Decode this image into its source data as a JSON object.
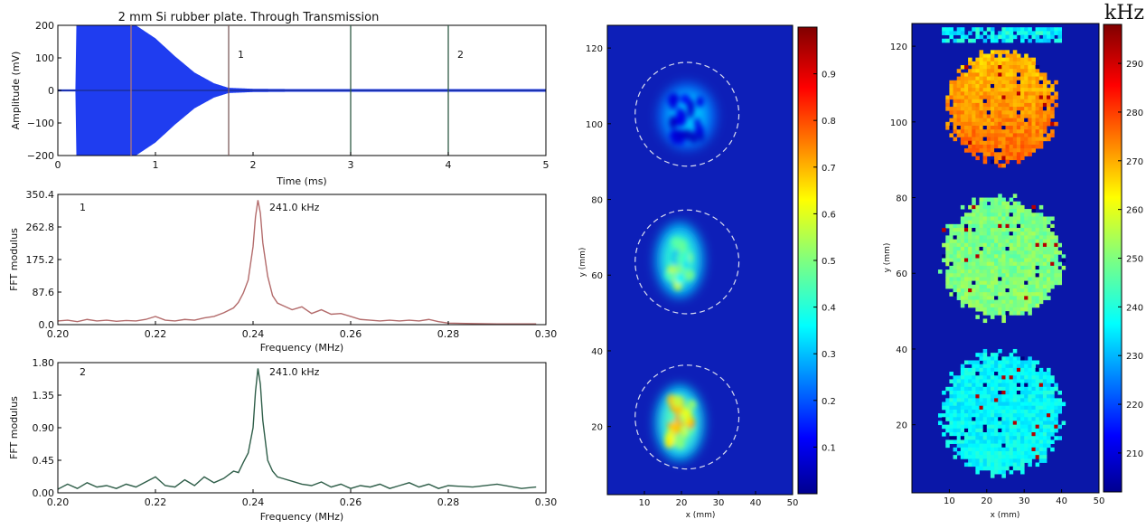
{
  "chart_data": [
    {
      "id": "time-signal",
      "type": "line",
      "title": "2 mm Si rubber plate. Through Transmission",
      "xlabel": "Time (ms)",
      "ylabel": "Amplitude (mV)",
      "xlim": [
        0,
        5
      ],
      "ylim": [
        -200,
        200
      ],
      "xticks": [
        "0",
        "1",
        "2",
        "3",
        "4",
        "5"
      ],
      "yticks": [
        "200",
        "100",
        "0",
        "−100",
        "−200"
      ],
      "envelope": {
        "x": [
          0.0,
          0.18,
          0.19,
          0.6,
          0.8,
          1.0,
          1.2,
          1.4,
          1.6,
          1.75,
          2.0,
          2.5,
          3.0,
          4.0,
          5.0
        ],
        "upper": [
          3,
          3,
          200,
          200,
          200,
          160,
          105,
          55,
          22,
          8,
          5,
          4,
          4,
          4,
          4
        ],
        "lower": [
          -3,
          -3,
          -200,
          -200,
          -200,
          -160,
          -105,
          -55,
          -22,
          -8,
          -5,
          -4,
          -4,
          -4,
          -4
        ]
      },
      "markers": [
        {
          "x": 0.75,
          "label": "",
          "color": "#b07a7a"
        },
        {
          "x": 1.75,
          "label": "1",
          "color": "#7d5c5c"
        },
        {
          "x": 3.0,
          "label": "",
          "color": "#2f5a45"
        },
        {
          "x": 4.0,
          "label": "2",
          "color": "#2f5a45"
        }
      ],
      "color": "#1f3df0"
    },
    {
      "id": "fft-1",
      "type": "line",
      "panel_label": "1",
      "annotation": "241.0 kHz",
      "xlabel": "Frequency (MHz)",
      "ylabel": "FFT modulus",
      "xlim": [
        0.2,
        0.3
      ],
      "ylim": [
        0,
        350.4
      ],
      "xticks": [
        "0.20",
        "0.22",
        "0.24",
        "0.26",
        "0.28",
        "0.30"
      ],
      "yticks": [
        "350.4",
        "262.8",
        "175.2",
        "87.6",
        "0.0"
      ],
      "color": "#b36b6b",
      "x": [
        0.2,
        0.202,
        0.204,
        0.206,
        0.208,
        0.21,
        0.212,
        0.214,
        0.216,
        0.218,
        0.22,
        0.222,
        0.224,
        0.226,
        0.228,
        0.23,
        0.232,
        0.234,
        0.236,
        0.237,
        0.238,
        0.239,
        0.24,
        0.2405,
        0.241,
        0.2415,
        0.242,
        0.243,
        0.244,
        0.245,
        0.246,
        0.248,
        0.25,
        0.252,
        0.254,
        0.256,
        0.258,
        0.26,
        0.262,
        0.264,
        0.266,
        0.268,
        0.27,
        0.272,
        0.274,
        0.276,
        0.278,
        0.28,
        0.285,
        0.29,
        0.295,
        0.298
      ],
      "y": [
        10,
        12,
        8,
        14,
        10,
        12,
        9,
        11,
        10,
        14,
        22,
        12,
        10,
        14,
        12,
        18,
        22,
        32,
        45,
        60,
        85,
        120,
        210,
        290,
        335,
        300,
        220,
        130,
        78,
        58,
        52,
        40,
        48,
        30,
        40,
        28,
        30,
        22,
        14,
        12,
        10,
        12,
        10,
        12,
        10,
        14,
        8,
        4,
        3,
        2,
        2,
        2
      ]
    },
    {
      "id": "fft-2",
      "type": "line",
      "panel_label": "2",
      "annotation": "241.0 kHz",
      "xlabel": "Frequency (MHz)",
      "ylabel": "FFT modulus",
      "xlim": [
        0.2,
        0.3
      ],
      "ylim": [
        0,
        1.8
      ],
      "xticks": [
        "0.20",
        "0.22",
        "0.24",
        "0.26",
        "0.28",
        "0.30"
      ],
      "yticks": [
        "1.80",
        "1.35",
        "0.90",
        "0.45",
        "0.00"
      ],
      "color": "#2f5e49",
      "x": [
        0.2,
        0.202,
        0.204,
        0.206,
        0.208,
        0.21,
        0.212,
        0.214,
        0.216,
        0.218,
        0.22,
        0.222,
        0.224,
        0.226,
        0.228,
        0.23,
        0.232,
        0.234,
        0.236,
        0.237,
        0.238,
        0.239,
        0.24,
        0.2405,
        0.241,
        0.2415,
        0.242,
        0.243,
        0.244,
        0.245,
        0.246,
        0.248,
        0.25,
        0.252,
        0.254,
        0.256,
        0.258,
        0.26,
        0.262,
        0.264,
        0.266,
        0.268,
        0.27,
        0.272,
        0.274,
        0.276,
        0.278,
        0.28,
        0.285,
        0.29,
        0.295,
        0.298
      ],
      "y": [
        0.05,
        0.12,
        0.06,
        0.14,
        0.08,
        0.1,
        0.06,
        0.12,
        0.08,
        0.15,
        0.22,
        0.1,
        0.08,
        0.18,
        0.1,
        0.22,
        0.14,
        0.2,
        0.3,
        0.28,
        0.42,
        0.55,
        0.9,
        1.4,
        1.72,
        1.5,
        1.0,
        0.45,
        0.3,
        0.22,
        0.2,
        0.16,
        0.12,
        0.1,
        0.15,
        0.08,
        0.12,
        0.06,
        0.1,
        0.08,
        0.12,
        0.06,
        0.1,
        0.14,
        0.08,
        0.12,
        0.06,
        0.1,
        0.08,
        0.12,
        0.06,
        0.08
      ]
    },
    {
      "id": "amplitude-map",
      "type": "heatmap",
      "xlabel": "x (mm)",
      "ylabel": "y (mm)",
      "xlim": [
        0,
        50
      ],
      "ylim": [
        2,
        126
      ],
      "xticks": [
        "10",
        "20",
        "30",
        "40",
        "50"
      ],
      "yticks": [
        "20",
        "40",
        "60",
        "80",
        "100",
        "120"
      ],
      "colorbar": {
        "ticks": [
          "0.1",
          "0.2",
          "0.3",
          "0.4",
          "0.5",
          "0.6",
          "0.7",
          "0.8",
          "0.9"
        ],
        "min": 0.0,
        "max": 1.0
      },
      "circles": [
        {
          "cx": 21.5,
          "cy": 102.5,
          "r": 14
        },
        {
          "cx": 21.5,
          "cy": 63.5,
          "r": 14
        },
        {
          "cx": 21.5,
          "cy": 22.5,
          "r": 14
        }
      ],
      "hotspots": [
        {
          "cx": 19.5,
          "cy": 64,
          "rx": 5,
          "ry": 9,
          "peak": 0.65
        },
        {
          "cx": 19.5,
          "cy": 21,
          "rx": 5,
          "ry": 9,
          "peak": 0.85
        },
        {
          "cx": 21.5,
          "cy": 102,
          "rx": 6,
          "ry": 8,
          "peak": 0.12
        }
      ]
    },
    {
      "id": "frequency-map",
      "type": "heatmap",
      "unit_label": "kHz",
      "xlabel": "x (mm)",
      "ylabel": "y (mm)",
      "xlim": [
        0,
        50
      ],
      "ylim": [
        2,
        126
      ],
      "xticks": [
        "10",
        "20",
        "30",
        "40",
        "50"
      ],
      "yticks": [
        "20",
        "40",
        "60",
        "80",
        "100",
        "120"
      ],
      "colorbar": {
        "ticks": [
          "210",
          "220",
          "230",
          "240",
          "250",
          "260",
          "270",
          "280",
          "290"
        ],
        "min": 202,
        "max": 298
      },
      "blobs": [
        {
          "cx": 24,
          "cy": 104,
          "r": 14.5,
          "value": 272
        },
        {
          "cx": 24,
          "cy": 64,
          "r": 16,
          "value": 250
        },
        {
          "cx": 24,
          "cy": 23,
          "r": 16,
          "value": 238
        }
      ],
      "top_strip": {
        "y": 123,
        "value": 238
      }
    }
  ]
}
